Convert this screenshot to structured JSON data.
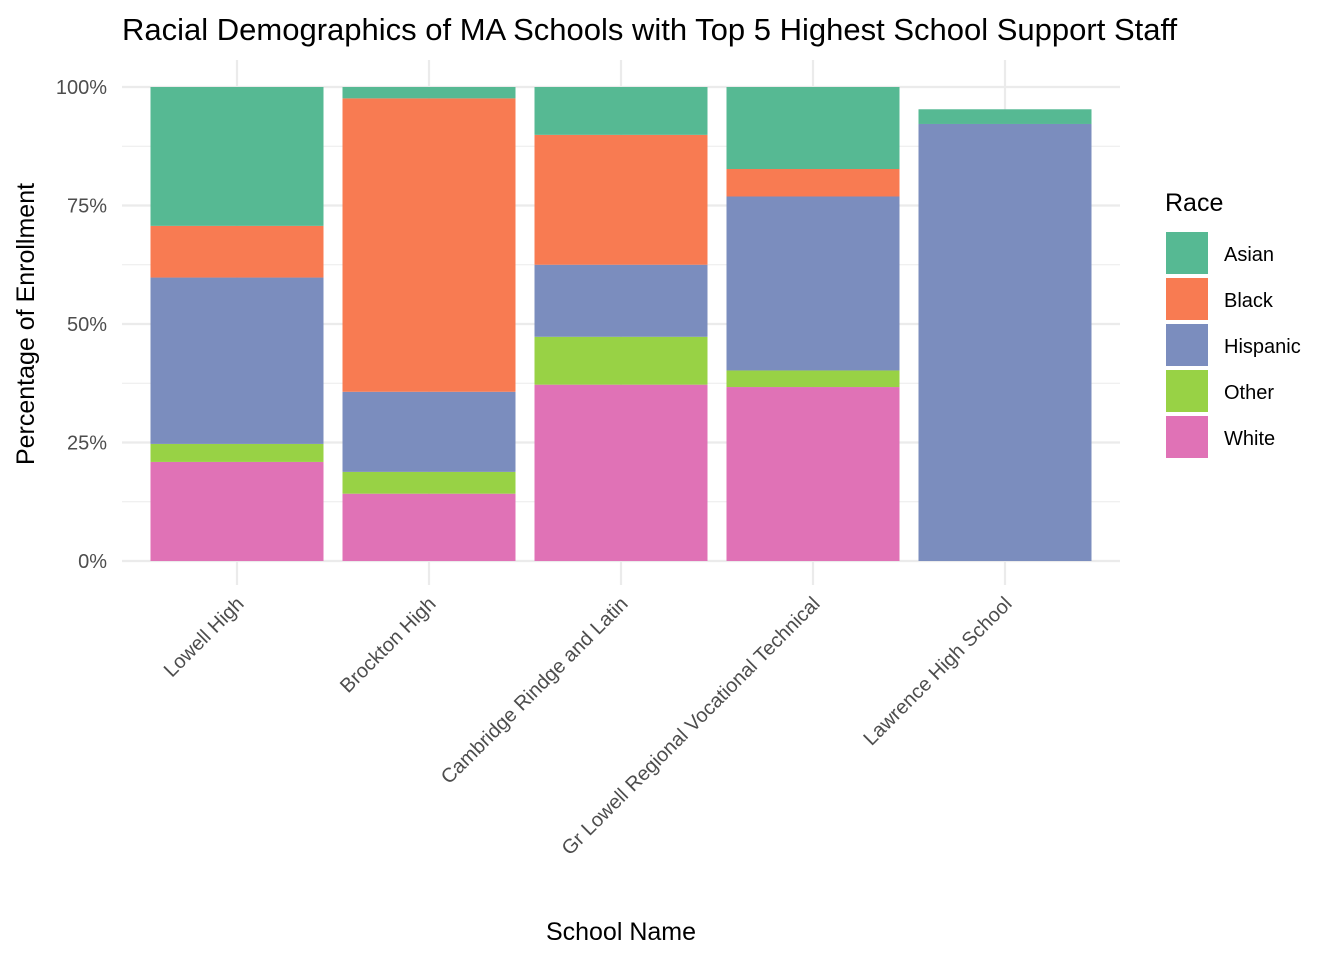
{
  "chart_data": {
    "type": "bar",
    "stacked": true,
    "title": "Racial Demographics of MA Schools with Top 5 Highest School Support Staff",
    "xlabel": "School Name",
    "ylabel": "Percentage of Enrollment",
    "ylim": [
      0,
      1
    ],
    "yticks": [
      "0%",
      "25%",
      "50%",
      "75%",
      "100%"
    ],
    "grid": true,
    "legend_position": "right",
    "legend_title": "Race",
    "categories": [
      "Lowell High",
      "Brockton High",
      "Cambridge Rindge and Latin",
      "Gr Lowell Regional Vocational Technical",
      "Lawrence High School"
    ],
    "series": [
      {
        "name": "White",
        "color": "#e072b6",
        "values": [
          0.209,
          0.142,
          0.372,
          0.367,
          0.0
        ]
      },
      {
        "name": "Other",
        "color": "#98d245",
        "values": [
          0.038,
          0.046,
          0.101,
          0.035,
          0.0
        ]
      },
      {
        "name": "Hispanic",
        "color": "#7b8dbe",
        "values": [
          0.351,
          0.169,
          0.152,
          0.367,
          0.922
        ]
      },
      {
        "name": "Black",
        "color": "#f87b52",
        "values": [
          0.109,
          0.619,
          0.274,
          0.058,
          0.0
        ]
      },
      {
        "name": "Asian",
        "color": "#56b993",
        "values": [
          0.293,
          0.024,
          0.101,
          0.173,
          0.031
        ]
      }
    ],
    "legend_order": [
      "Asian",
      "Black",
      "Hispanic",
      "Other",
      "White"
    ]
  }
}
